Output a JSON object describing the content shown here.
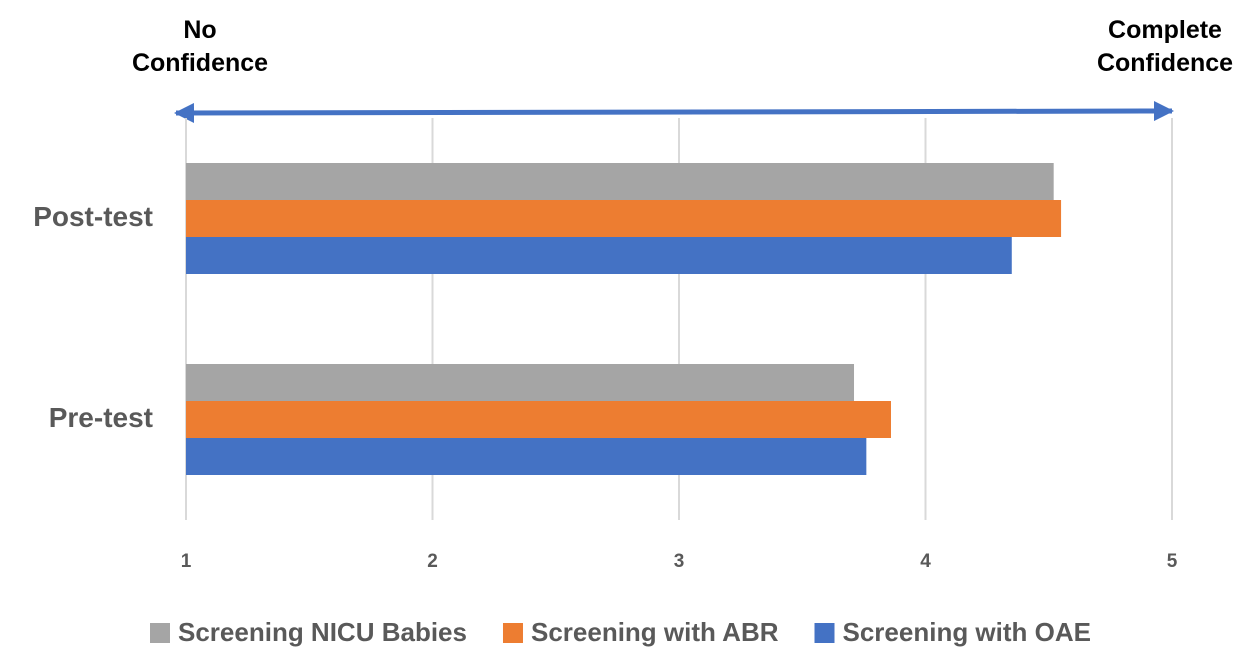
{
  "chart_data": {
    "type": "bar",
    "orientation": "horizontal",
    "annotations": [
      "No Confidence",
      "Complete Confidence"
    ],
    "categories": [
      "Post-test",
      "Pre-test"
    ],
    "series": [
      {
        "name": "Screening NICU Babies",
        "color": "#a5a5a5",
        "values": [
          4.52,
          3.71
        ]
      },
      {
        "name": "Screening with ABR",
        "color": "#ed7d31",
        "values": [
          4.55,
          3.86
        ]
      },
      {
        "name": "Screening with OAE",
        "color": "#4472c4",
        "values": [
          4.35,
          3.76
        ]
      }
    ],
    "xlim": [
      1,
      5
    ],
    "xticks": [
      1,
      2,
      3,
      4,
      5
    ],
    "grid": true,
    "legend": "bottom"
  }
}
